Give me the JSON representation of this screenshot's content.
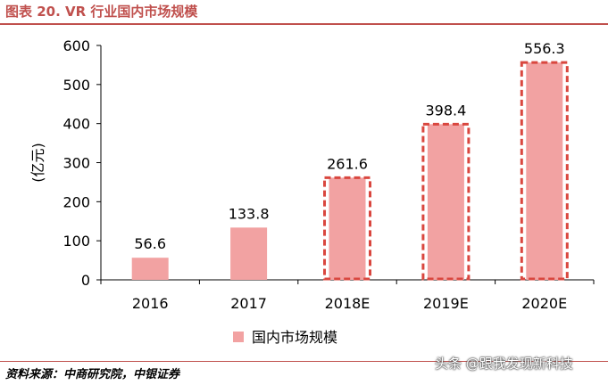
{
  "figure_title": "图表 20. VR 行业国内市场规模",
  "source": "资料来源：中商研究院，中银证券",
  "watermark": "头条 @跟我发现新科技",
  "colors": {
    "bar_fill": "#f2a2a2",
    "forecast_border": "#d9473f",
    "title": "#c0504d",
    "axis": "#000000"
  },
  "chart_data": {
    "type": "bar",
    "categories": [
      "2016",
      "2017",
      "2018E",
      "2019E",
      "2020E"
    ],
    "series": [
      {
        "name": "国内市场规模",
        "values": [
          56.6,
          133.8,
          261.6,
          398.4,
          556.3
        ]
      }
    ],
    "value_labels": [
      "56.6",
      "133.8",
      "261.6",
      "398.4",
      "556.3"
    ],
    "forecast": [
      false,
      false,
      true,
      true,
      true
    ],
    "ylabel": "(亿元)",
    "ylim": [
      0,
      600
    ],
    "yticks": [
      0,
      100,
      200,
      300,
      400,
      500,
      600
    ],
    "grid": false,
    "legend_position": "bottom"
  }
}
